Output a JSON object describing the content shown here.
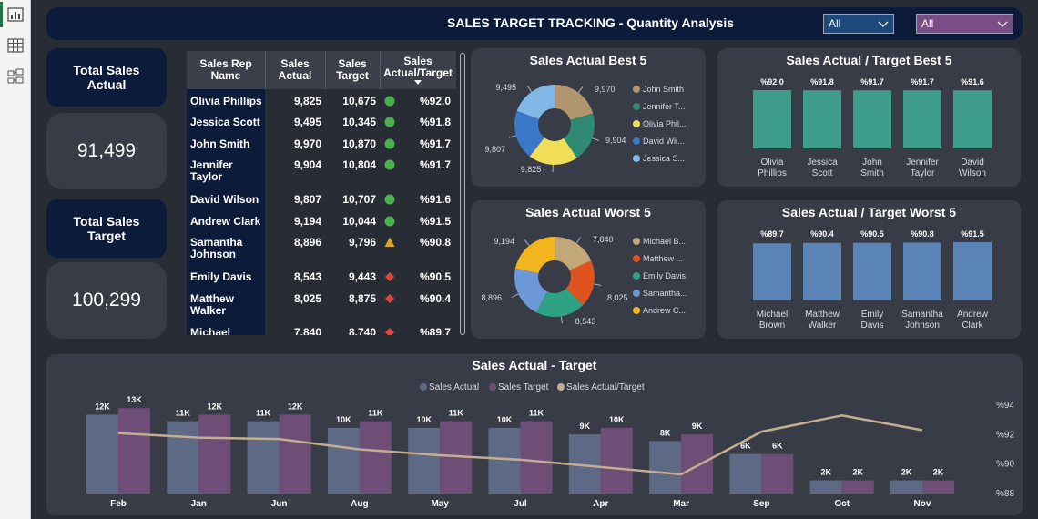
{
  "header": {
    "title": "SALES TARGET TRACKING - Quantity Analysis",
    "filter1": "All",
    "filter2": "All"
  },
  "kpis": {
    "actual_label": "Total Sales Actual",
    "actual_value": "91,499",
    "target_label": "Total Sales Target",
    "target_value": "100,299"
  },
  "table": {
    "headers": {
      "rep": "Sales Rep Name",
      "actual": "Sales Actual",
      "target": "Sales Target",
      "ratio": "Sales Actual/Target"
    },
    "rows": [
      {
        "name": "Olivia Phillips",
        "actual": "9,825",
        "target": "10,675",
        "status": "green",
        "ratio": "%92.0"
      },
      {
        "name": "Jessica Scott",
        "actual": "9,495",
        "target": "10,345",
        "status": "green",
        "ratio": "%91.8"
      },
      {
        "name": "John Smith",
        "actual": "9,970",
        "target": "10,870",
        "status": "green",
        "ratio": "%91.7"
      },
      {
        "name": "Jennifer Taylor",
        "actual": "9,904",
        "target": "10,804",
        "status": "green",
        "ratio": "%91.7"
      },
      {
        "name": "David Wilson",
        "actual": "9,807",
        "target": "10,707",
        "status": "green",
        "ratio": "%91.6"
      },
      {
        "name": "Andrew Clark",
        "actual": "9,194",
        "target": "10,044",
        "status": "green",
        "ratio": "%91.5"
      },
      {
        "name": "Samantha Johnson",
        "actual": "8,896",
        "target": "9,796",
        "status": "yellow",
        "ratio": "%90.8"
      },
      {
        "name": "Emily Davis",
        "actual": "8,543",
        "target": "9,443",
        "status": "red",
        "ratio": "%90.5"
      },
      {
        "name": "Matthew Walker",
        "actual": "8,025",
        "target": "8,875",
        "status": "red",
        "ratio": "%90.4"
      },
      {
        "name": "Michael",
        "actual": "7,840",
        "target": "8,740",
        "status": "red",
        "ratio": "%89.7"
      }
    ]
  },
  "colors": {
    "green": "#4caf50",
    "yellow": "#e0a321",
    "red": "#e8453c",
    "actual_bar": "#5e6a85",
    "target_bar": "#6e4d77",
    "ratio_line": "#c4ad91",
    "best_bar": "#3e9c8a",
    "worst_bar": "#5a84b5"
  },
  "best5_donut": {
    "title": "Sales Actual Best 5",
    "slices": [
      {
        "label": "John Smith",
        "legend": "John Smith",
        "value": 9970,
        "value_label": "9,970",
        "color": "#b09570"
      },
      {
        "label": "Jennifer Taylor",
        "legend": "Jennifer T...",
        "value": 9904,
        "value_label": "9,904",
        "color": "#2f8a74"
      },
      {
        "label": "Olivia Phillips",
        "legend": "Olivia Phil...",
        "value": 9825,
        "value_label": "9,825",
        "color": "#f0dd58"
      },
      {
        "label": "David Wilson",
        "legend": "David Wil...",
        "value": 9807,
        "value_label": "9,807",
        "color": "#3a78c8"
      },
      {
        "label": "Jessica Scott",
        "legend": "Jessica S...",
        "value": 9495,
        "value_label": "9,495",
        "color": "#82b8e8"
      }
    ]
  },
  "worst5_donut": {
    "title": "Sales Actual Worst 5",
    "slices": [
      {
        "label": "Michael Brown",
        "legend": "Michael B...",
        "value": 7840,
        "value_label": "7,840",
        "color": "#c2a878"
      },
      {
        "label": "Matthew Walker",
        "legend": "Matthew ...",
        "value": 8025,
        "value_label": "8,025",
        "color": "#e0531f"
      },
      {
        "label": "Emily Davis",
        "legend": "Emily Davis",
        "value": 8543,
        "value_label": "8,543",
        "color": "#2ea383"
      },
      {
        "label": "Samantha Johnson",
        "legend": "Samantha...",
        "value": 8896,
        "value_label": "8,896",
        "color": "#6c98d8"
      },
      {
        "label": "Andrew Clark",
        "legend": "Andrew C...",
        "value": 9194,
        "value_label": "9,194",
        "color": "#f2b51d"
      }
    ]
  },
  "best5_ratio": {
    "title": "Sales Actual / Target Best 5",
    "items": [
      {
        "name": "Olivia Phillips",
        "line1": "Olivia",
        "line2": "Phillips",
        "value": 92.0,
        "label": "%92.0"
      },
      {
        "name": "Jessica Scott",
        "line1": "Jessica",
        "line2": "Scott",
        "value": 91.8,
        "label": "%91.8"
      },
      {
        "name": "John Smith",
        "line1": "John",
        "line2": "Smith",
        "value": 91.7,
        "label": "%91.7"
      },
      {
        "name": "Jennifer Taylor",
        "line1": "Jennifer",
        "line2": "Taylor",
        "value": 91.7,
        "label": "%91.7"
      },
      {
        "name": "David Wilson",
        "line1": "David",
        "line2": "Wilson",
        "value": 91.6,
        "label": "%91.6"
      }
    ]
  },
  "worst5_ratio": {
    "title": "Sales Actual / Target Worst 5",
    "items": [
      {
        "name": "Michael Brown",
        "line1": "Michael",
        "line2": "Brown",
        "value": 89.7,
        "label": "%89.7"
      },
      {
        "name": "Matthew Walker",
        "line1": "Matthew",
        "line2": "Walker",
        "value": 90.4,
        "label": "%90.4"
      },
      {
        "name": "Emily Davis",
        "line1": "Emily",
        "line2": "Davis",
        "value": 90.5,
        "label": "%90.5"
      },
      {
        "name": "Samantha Johnson",
        "line1": "Samantha",
        "line2": "Johnson",
        "value": 90.8,
        "label": "%90.8"
      },
      {
        "name": "Andrew Clark",
        "line1": "Andrew",
        "line2": "Clark",
        "value": 91.5,
        "label": "%91.5"
      }
    ]
  },
  "chart_data": {
    "type": "bar",
    "title": "Sales Actual - Target",
    "categories": [
      "Feb",
      "Jan",
      "Jun",
      "Aug",
      "May",
      "Jul",
      "Apr",
      "Mar",
      "Sep",
      "Oct",
      "Nov"
    ],
    "series": [
      {
        "name": "Sales Actual",
        "type": "bar",
        "values": [
          12000,
          11000,
          11000,
          10000,
          10000,
          10000,
          9000,
          8000,
          6000,
          2000,
          2000
        ],
        "labels": [
          "12K",
          "11K",
          "11K",
          "10K",
          "10K",
          "10K",
          "9K",
          "8K",
          "6K",
          "2K",
          "2K"
        ]
      },
      {
        "name": "Sales Target",
        "type": "bar",
        "values": [
          13000,
          12000,
          12000,
          11000,
          11000,
          11000,
          10000,
          9000,
          6000,
          2000,
          2000
        ],
        "labels": [
          "13K",
          "12K",
          "12K",
          "11K",
          "11K",
          "11K",
          "10K",
          "9K",
          "6K",
          "2K",
          "2K"
        ]
      },
      {
        "name": "Sales Actual/Target",
        "type": "line",
        "axis": "right",
        "values": [
          92.1,
          91.8,
          91.7,
          91.0,
          90.6,
          90.3,
          89.8,
          89.3,
          92.2,
          93.3,
          92.3
        ]
      }
    ],
    "ylim": [
      0,
      14000
    ],
    "y2lim": [
      88,
      94
    ],
    "y2ticks": [
      "%94",
      "%92",
      "%90",
      "%88"
    ],
    "legend": "top-center"
  }
}
